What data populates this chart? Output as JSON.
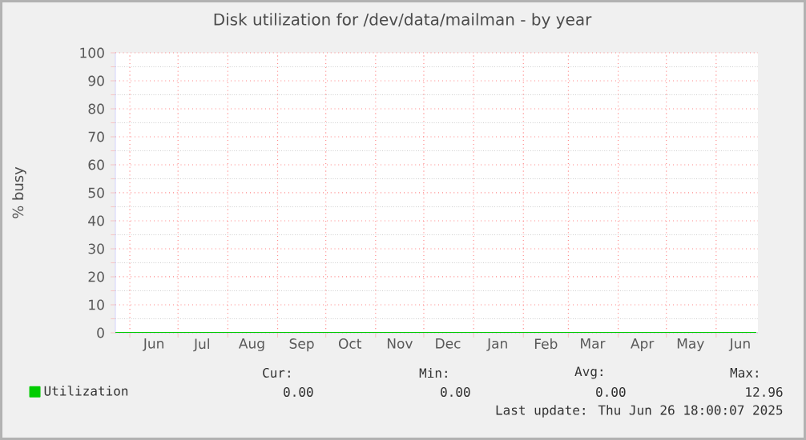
{
  "chart_data": {
    "type": "line",
    "title": "Disk utilization for /dev/data/mailman - by year",
    "ylabel": "% busy",
    "xlim": [
      "2024-05-23",
      "2025-06-27"
    ],
    "xticks": [
      {
        "value": "2024-06-01",
        "label": null
      },
      {
        "value": "2024-07-01",
        "label": null
      },
      {
        "value": "2024-08-01",
        "label": null
      },
      {
        "value": "2024-09-01",
        "label": null
      },
      {
        "value": "2024-10-01",
        "label": null
      },
      {
        "value": "2024-11-01",
        "label": null
      },
      {
        "value": "2024-12-01",
        "label": null
      },
      {
        "value": "2025-01-01",
        "label": null
      },
      {
        "value": "2025-02-01",
        "label": null
      },
      {
        "value": "2025-03-01",
        "label": null
      },
      {
        "value": "2025-04-01",
        "label": null
      },
      {
        "value": "2025-05-01",
        "label": null
      },
      {
        "value": "2025-06-01",
        "label": null
      },
      {
        "value": "2024-06-16",
        "label": "Jun"
      },
      {
        "value": "2024-07-16",
        "label": "Jul"
      },
      {
        "value": "2024-08-16",
        "label": "Aug"
      },
      {
        "value": "2024-09-16",
        "label": "Sep"
      },
      {
        "value": "2024-10-16",
        "label": "Oct"
      },
      {
        "value": "2024-11-16",
        "label": "Nov"
      },
      {
        "value": "2024-12-16",
        "label": "Dec"
      },
      {
        "value": "2025-01-16",
        "label": "Jan"
      },
      {
        "value": "2025-02-15",
        "label": "Feb"
      },
      {
        "value": "2025-03-16",
        "label": "Mar"
      },
      {
        "value": "2025-04-16",
        "label": "Apr"
      },
      {
        "value": "2025-05-16",
        "label": "May"
      },
      {
        "value": "2025-06-16",
        "label": "Jun"
      }
    ],
    "ylim": [
      0,
      100
    ],
    "yticks": [
      0,
      10,
      20,
      30,
      40,
      50,
      60,
      70,
      80,
      90,
      100
    ],
    "grid": true,
    "legend": "bottom",
    "series": [
      {
        "name": "Utilization",
        "color": "#00cc00",
        "x": [
          "2024-05-23",
          "2025-06-26"
        ],
        "values": [
          0,
          0
        ]
      }
    ],
    "annotations": [
      "Cur:",
      "Min:",
      "Avg:",
      "Max:",
      "0.00",
      "0.00",
      "0.00",
      "12.96",
      "Last update: Thu Jun 26 18:00:07 2025"
    ]
  }
}
